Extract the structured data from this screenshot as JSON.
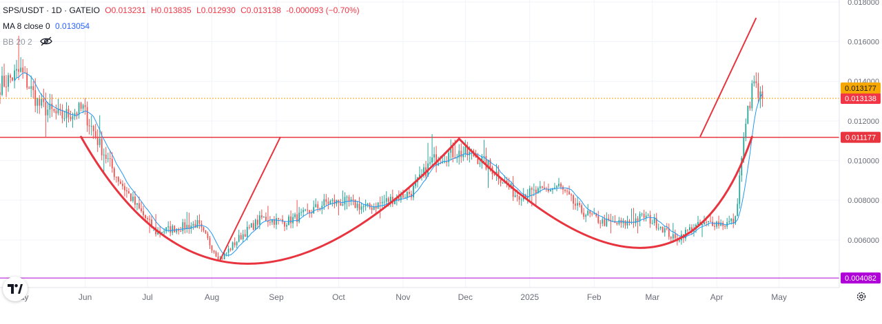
{
  "header": {
    "symbol": "SPS/USDT · 1D · GATEIO",
    "open": "O0.013231",
    "high": "H0.013835",
    "low": "L0.012930",
    "close": "C0.013138",
    "change": "-0.000093 (−0.70%)",
    "ma_label": "MA 8 close 0",
    "ma_value": "0.013054",
    "bb_label": "BB 20 2"
  },
  "colors": {
    "up": "#26a69a",
    "down": "#ef5350",
    "ma": "#2196f3",
    "drawing": "#e8343f",
    "support": "#b000d8",
    "price_line": "#f5a100",
    "price_badge": "#f23645",
    "high_badge": "#f7a800",
    "axis_text": "#6a6d78"
  },
  "icons": [
    "tradingview-logo-icon",
    "eye-off-icon",
    "gear-icon"
  ],
  "chart_data": {
    "type": "candlestick",
    "title": "SPS/USDT · 1D · GATEIO",
    "ylim": [
      0.0036,
      0.0181
    ],
    "y_ticks": [
      "0.018000",
      "0.016000",
      "0.014000",
      "0.012000",
      "0.010000",
      "0.008000",
      "0.006000"
    ],
    "x_ticks": [
      "May",
      "Jun",
      "Jul",
      "Aug",
      "Sep",
      "Oct",
      "Nov",
      "Dec",
      "2025",
      "Feb",
      "Mar",
      "Apr",
      "May"
    ],
    "x_range": [
      "2024-04-21",
      "2025-05-30"
    ],
    "price_path": [
      [
        "2024-04-21",
        0.0138
      ],
      [
        "2024-05-01",
        0.0145
      ],
      [
        "2024-05-10",
        0.0128
      ],
      [
        "2024-05-20",
        0.0122
      ],
      [
        "2024-05-31",
        0.0126
      ],
      [
        "2024-06-08",
        0.0108
      ],
      [
        "2024-06-15",
        0.0094
      ],
      [
        "2024-06-25",
        0.0078
      ],
      [
        "2024-07-05",
        0.0064
      ],
      [
        "2024-07-15",
        0.0066
      ],
      [
        "2024-07-25",
        0.0068
      ],
      [
        "2024-08-05",
        0.005
      ],
      [
        "2024-08-15",
        0.0062
      ],
      [
        "2024-08-25",
        0.0071
      ],
      [
        "2024-09-05",
        0.0069
      ],
      [
        "2024-09-15",
        0.0073
      ],
      [
        "2024-09-25",
        0.0079
      ],
      [
        "2024-10-05",
        0.0079
      ],
      [
        "2024-10-15",
        0.0076
      ],
      [
        "2024-10-25",
        0.008
      ],
      [
        "2024-11-05",
        0.0084
      ],
      [
        "2024-11-15",
        0.01
      ],
      [
        "2024-11-25",
        0.0104
      ],
      [
        "2024-12-05",
        0.0103
      ],
      [
        "2024-12-15",
        0.0095
      ],
      [
        "2024-12-25",
        0.0083
      ],
      [
        "2025-01-05",
        0.0084
      ],
      [
        "2025-01-15",
        0.0087
      ],
      [
        "2025-01-25",
        0.0075
      ],
      [
        "2025-02-05",
        0.0069
      ],
      [
        "2025-02-15",
        0.0068
      ],
      [
        "2025-02-25",
        0.0072
      ],
      [
        "2025-03-05",
        0.0067
      ],
      [
        "2025-03-12",
        0.006
      ],
      [
        "2025-03-20",
        0.0066
      ],
      [
        "2025-03-30",
        0.0069
      ],
      [
        "2025-04-05",
        0.0068
      ],
      [
        "2025-04-10",
        0.007
      ],
      [
        "2025-04-13",
        0.0102
      ],
      [
        "2025-04-16",
        0.0125
      ],
      [
        "2025-04-19",
        0.014
      ],
      [
        "2025-04-21",
        0.0132
      ],
      [
        "2025-04-23",
        0.0131
      ]
    ],
    "moving_average": {
      "name": "MA 8 close 0",
      "last": 0.013054
    },
    "horizontal_lines": [
      {
        "label": "0.011177",
        "value": 0.011177,
        "style": "resistance"
      },
      {
        "label": "0.004082",
        "value": 0.004082,
        "style": "support"
      },
      {
        "label": "0.013138",
        "value": 0.013138,
        "style": "last-price"
      },
      {
        "label": "0.013177",
        "value": 0.013177,
        "style": "marker"
      }
    ],
    "annotations": {
      "cup_left": {
        "from": [
          "2024-05-30",
          0.0112
        ],
        "bottom": [
          "2024-08-07",
          0.0048
        ],
        "to": [
          "2024-11-28",
          0.0111
        ]
      },
      "cup_right": {
        "from": [
          "2024-11-28",
          0.0111
        ],
        "bottom": [
          "2025-03-12",
          0.0056
        ],
        "to": [
          "2025-04-18",
          0.0112
        ]
      },
      "trend_1": {
        "from": [
          "2024-08-05",
          0.005
        ],
        "to": [
          "2024-09-03",
          0.0112
        ]
      },
      "trend_2": {
        "from": [
          "2025-03-24",
          0.0112
        ],
        "to": [
          "2025-04-20",
          0.0172
        ]
      }
    }
  }
}
